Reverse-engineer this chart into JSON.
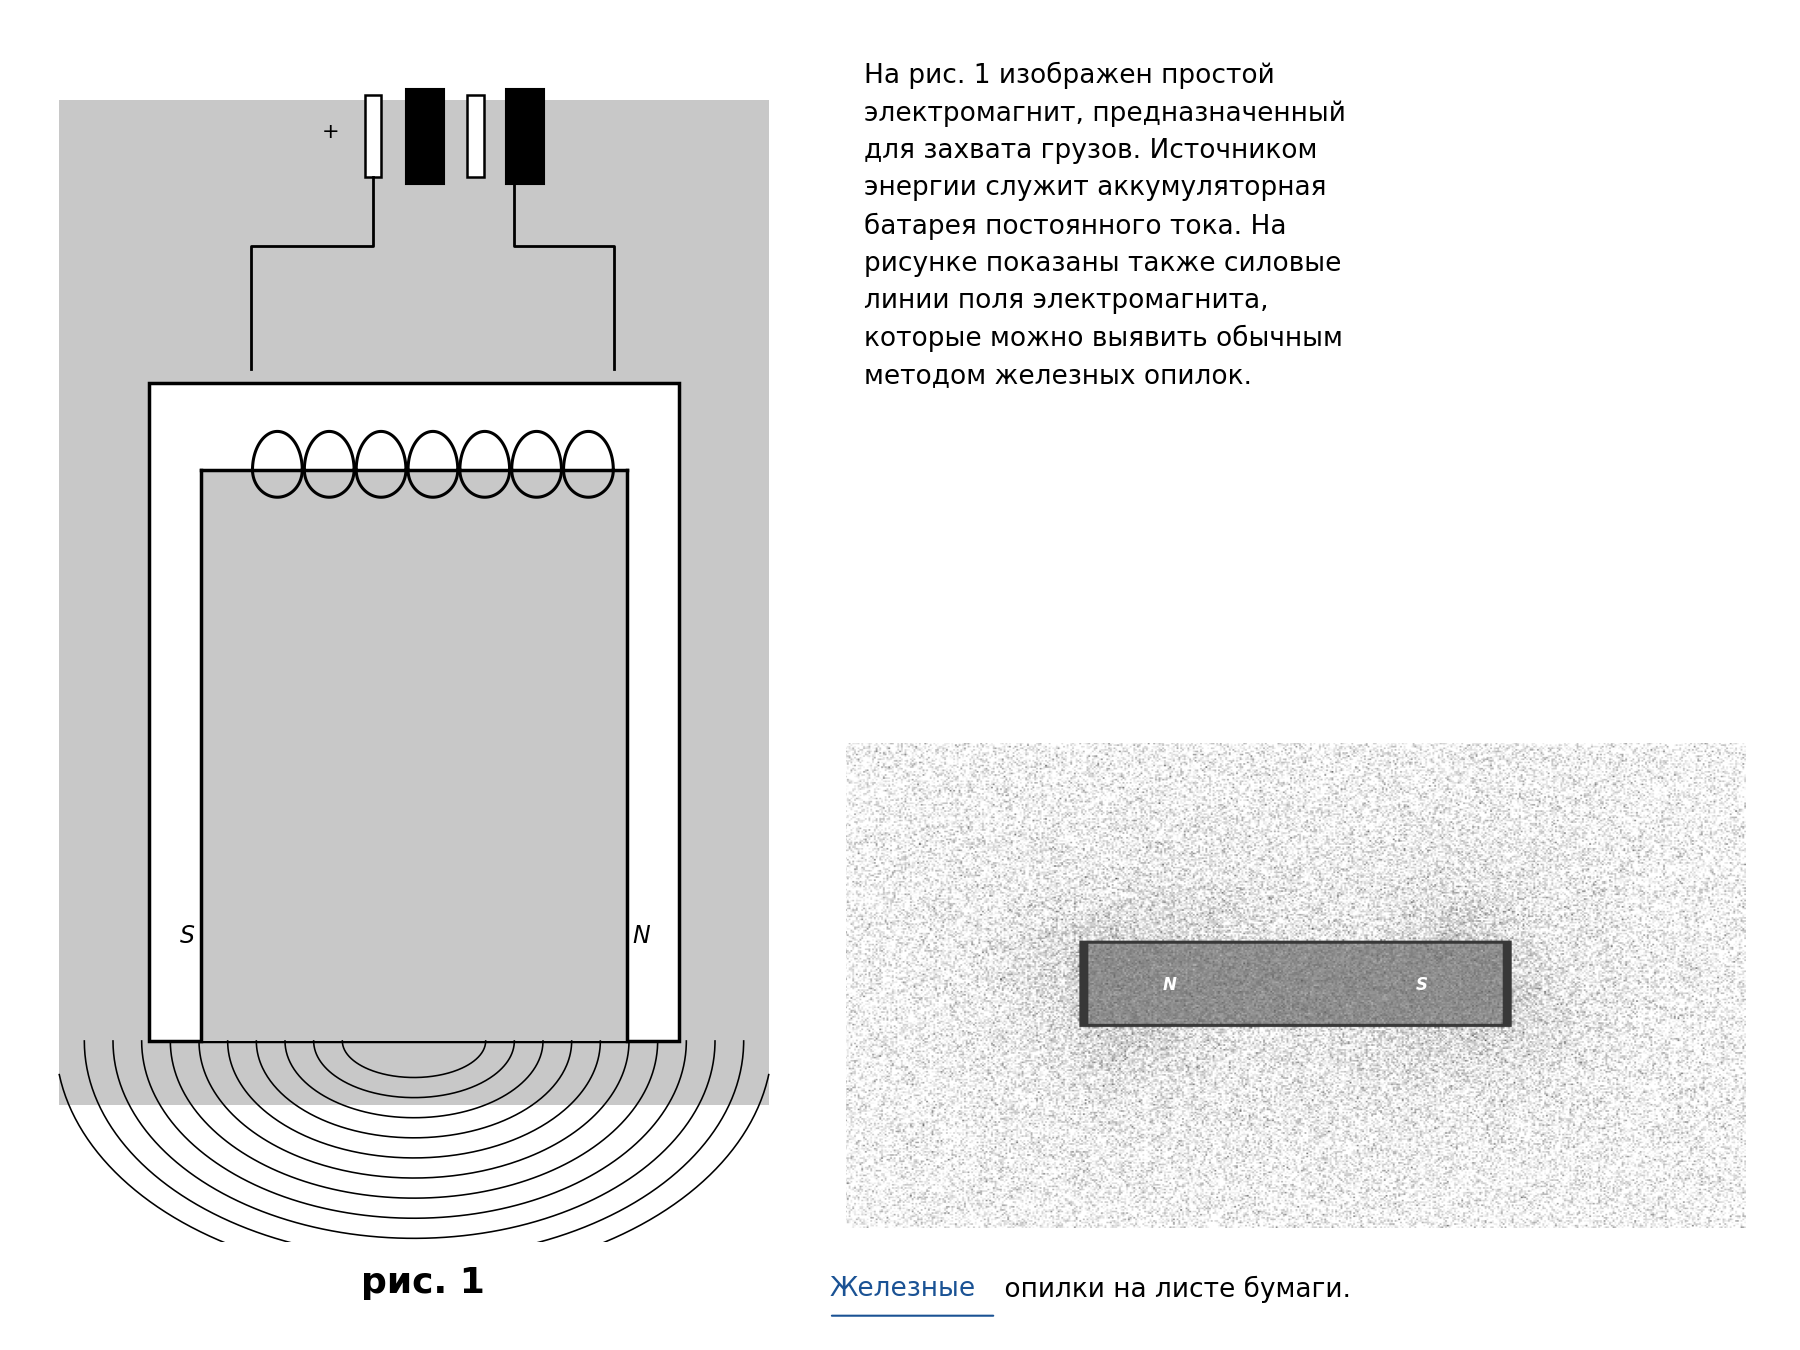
{
  "bg_color": "#ffffff",
  "gray_bg": "#c8c8c8",
  "description_text": "На рис. 1 изображен простой\nэлектромагнит, предназначенный\nдля захвата грузов. Источником\nэнергии служит аккумуляторная\nбатарея постоянного тока. На\nрисунке показаны также силовые\nлинии поля электромагнита,\nкоторые можно выявить обычным\nметодом железных опилок.",
  "caption_text": "рис. 1",
  "bottom_text_plain": " опилки на листе бумаги.",
  "bottom_text_link": "Железные",
  "text_fontsize": 19,
  "caption_fontsize": 26
}
